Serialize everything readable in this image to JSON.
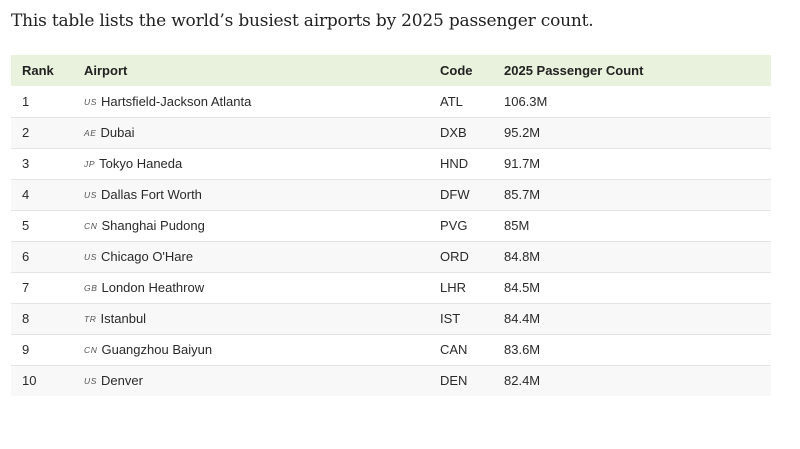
{
  "intro_text": "This table lists the world’s busiest airports by 2025 passenger count.",
  "table": {
    "headers": {
      "rank": "Rank",
      "airport": "Airport",
      "code": "Code",
      "count": "2025 Passenger Count"
    },
    "rows": [
      {
        "rank": "1",
        "country": "US",
        "airport": "Hartsfield-Jackson Atlanta",
        "code": "ATL",
        "count": "106.3M"
      },
      {
        "rank": "2",
        "country": "AE",
        "airport": "Dubai",
        "code": "DXB",
        "count": "95.2M"
      },
      {
        "rank": "3",
        "country": "JP",
        "airport": "Tokyo Haneda",
        "code": "HND",
        "count": "91.7M"
      },
      {
        "rank": "4",
        "country": "US",
        "airport": "Dallas Fort Worth",
        "code": "DFW",
        "count": "85.7M"
      },
      {
        "rank": "5",
        "country": "CN",
        "airport": "Shanghai Pudong",
        "code": "PVG",
        "count": "85M"
      },
      {
        "rank": "6",
        "country": "US",
        "airport": "Chicago O'Hare",
        "code": "ORD",
        "count": "84.8M"
      },
      {
        "rank": "7",
        "country": "GB",
        "airport": "London Heathrow",
        "code": "LHR",
        "count": "84.5M"
      },
      {
        "rank": "8",
        "country": "TR",
        "airport": "Istanbul",
        "code": "IST",
        "count": "84.4M"
      },
      {
        "rank": "9",
        "country": "CN",
        "airport": "Guangzhou Baiyun",
        "code": "CAN",
        "count": "83.6M"
      },
      {
        "rank": "10",
        "country": "US",
        "airport": "Denver",
        "code": "DEN",
        "count": "82.4M"
      }
    ]
  }
}
